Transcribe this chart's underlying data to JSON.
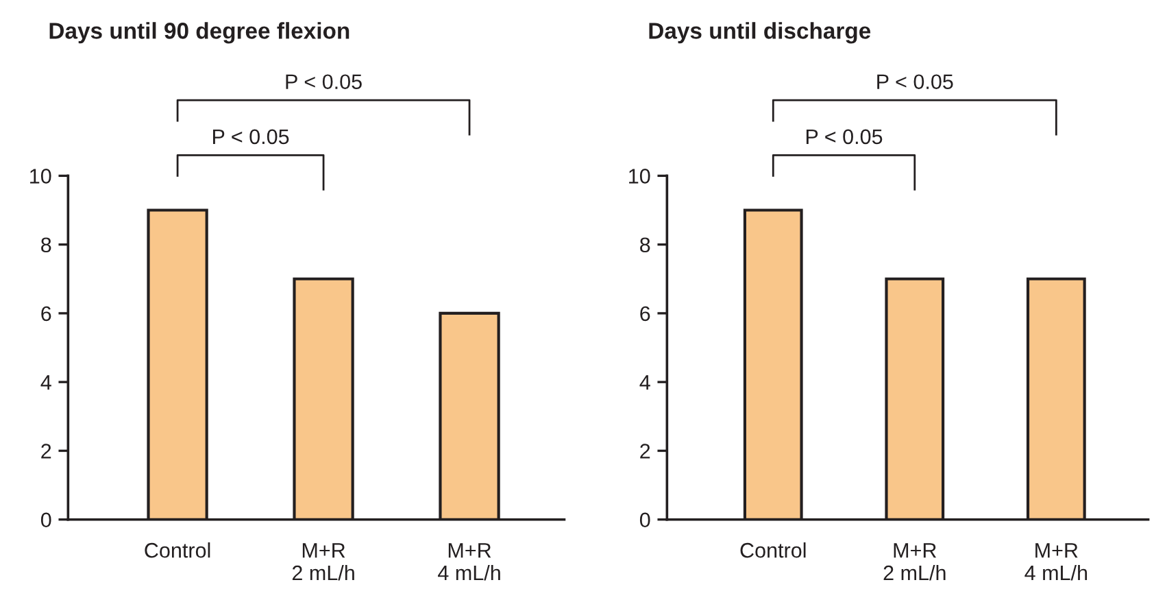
{
  "chart_data": [
    {
      "type": "bar",
      "title": "Days until 90 degree flexion",
      "categories": [
        "Control",
        "M+R\n2 mL/h",
        "M+R\n4 mL/h"
      ],
      "values": [
        9,
        7,
        6
      ],
      "color": "#f9c68a",
      "ylim": [
        0,
        10
      ],
      "yticks": [
        0,
        2,
        4,
        6,
        8,
        10
      ],
      "grid": false,
      "annotations": [
        "P < 0.05",
        "P < 0.05"
      ]
    },
    {
      "type": "bar",
      "title": "Days until discharge",
      "categories": [
        "Control",
        "M+R\n2 mL/h",
        "M+R\n4 mL/h"
      ],
      "values": [
        9,
        7,
        7
      ],
      "color": "#f9c68a",
      "ylim": [
        0,
        10
      ],
      "yticks": [
        0,
        2,
        4,
        6,
        8,
        10
      ],
      "grid": false,
      "annotations": [
        "P < 0.05",
        "P < 0.05"
      ]
    }
  ]
}
